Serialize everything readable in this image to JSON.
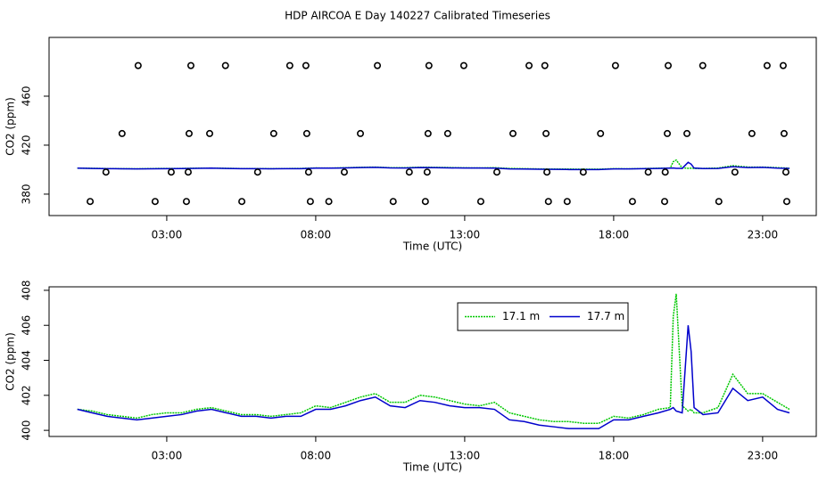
{
  "chart_data": [
    {
      "type": "scatter",
      "title": "HDP AIRCOA E  Day 140227  Calibrated Timeseries",
      "xlabel": "Time (UTC)",
      "ylabel": "CO2 (ppm)",
      "xlim": [
        -0.95,
        24.8
      ],
      "xticks": [
        {
          "value": 3,
          "label": "03:00"
        },
        {
          "value": 8,
          "label": "08:00"
        },
        {
          "value": 13,
          "label": "13:00"
        },
        {
          "value": 18,
          "label": "18:00"
        },
        {
          "value": 23,
          "label": "23:00"
        }
      ],
      "ylim": [
        362.5,
        508
      ],
      "yticks": [
        380,
        420,
        460
      ],
      "color": "#000000",
      "x": [
        2.04,
        3.81,
        4.97,
        7.13,
        7.67,
        10.07,
        11.8,
        12.97,
        15.16,
        15.69,
        18.06,
        19.83,
        20.99,
        23.15,
        23.69,
        1.5,
        3.75,
        4.44,
        6.59,
        7.7,
        9.5,
        11.77,
        12.43,
        14.62,
        15.73,
        17.56,
        19.8,
        20.46,
        22.64,
        23.72,
        0.96,
        3.15,
        3.72,
        6.05,
        7.76,
        8.96,
        11.14,
        11.74,
        14.08,
        15.76,
        16.98,
        19.16,
        19.73,
        22.07,
        23.78,
        0.43,
        2.61,
        3.66,
        5.52,
        7.82,
        8.44,
        10.6,
        11.68,
        13.54,
        15.81,
        16.44,
        18.63,
        19.71,
        21.53,
        23.81
      ],
      "values": [
        485,
        485,
        485,
        485,
        485,
        485,
        485,
        485,
        485,
        485,
        485,
        485,
        485,
        485,
        485,
        429.5,
        429.5,
        429.5,
        429.5,
        429.5,
        429.5,
        429.5,
        429.5,
        429.5,
        429.5,
        429.5,
        429.5,
        429.5,
        429.5,
        429.5,
        398,
        398,
        398,
        398,
        398,
        398,
        398,
        398,
        398,
        398,
        398,
        398,
        398,
        398,
        398,
        374,
        374,
        374,
        374,
        374,
        374,
        374,
        374,
        374,
        374,
        374,
        374,
        374,
        374,
        374
      ]
    },
    {
      "type": "line",
      "xlabel": "Time (UTC)",
      "ylabel": "CO2 (ppm)",
      "xlim": [
        -0.95,
        24.8
      ],
      "xticks": [
        {
          "value": 3,
          "label": "03:00"
        },
        {
          "value": 8,
          "label": "08:00"
        },
        {
          "value": 13,
          "label": "13:00"
        },
        {
          "value": 18,
          "label": "18:00"
        },
        {
          "value": 23,
          "label": "23:00"
        }
      ],
      "ylim": [
        399.65,
        408.2
      ],
      "yticks": [
        400,
        402,
        404,
        406,
        408
      ],
      "legend": "top-right",
      "x": [
        0,
        0.5,
        1,
        1.5,
        2,
        2.5,
        3,
        3.5,
        4,
        4.5,
        5,
        5.5,
        6,
        6.5,
        7,
        7.5,
        8,
        8.5,
        9,
        9.5,
        10,
        10.5,
        11,
        11.5,
        12,
        12.5,
        13,
        13.5,
        14,
        14.5,
        15,
        15.5,
        16,
        16.5,
        17,
        17.5,
        18,
        18.5,
        19,
        19.5,
        19.9,
        20.0,
        20.1,
        20.3,
        20.5,
        20.6,
        20.7,
        21,
        21.5,
        22,
        22.5,
        23,
        23.5,
        23.9
      ],
      "series": [
        {
          "name": "17.1 m",
          "color": "#00c800",
          "linestyle": "dotted",
          "values": [
            401.2,
            401.1,
            400.9,
            400.8,
            400.7,
            400.9,
            401.0,
            401.0,
            401.2,
            401.3,
            401.1,
            400.9,
            400.9,
            400.8,
            400.9,
            401.0,
            401.4,
            401.3,
            401.6,
            401.9,
            402.1,
            401.6,
            401.6,
            402.0,
            401.9,
            401.7,
            401.5,
            401.4,
            401.6,
            401.0,
            400.8,
            400.6,
            400.5,
            400.5,
            400.4,
            400.4,
            400.8,
            400.7,
            400.9,
            401.2,
            401.3,
            406.5,
            407.8,
            401.4,
            401.1,
            401.2,
            401.0,
            401.0,
            401.3,
            403.2,
            402.1,
            402.1,
            401.6,
            401.2
          ]
        },
        {
          "name": "17.7 m",
          "color": "#0000cc",
          "linestyle": "solid",
          "values": [
            401.2,
            401.0,
            400.8,
            400.7,
            400.6,
            400.7,
            400.8,
            400.9,
            401.1,
            401.2,
            401.0,
            400.8,
            400.8,
            400.7,
            400.8,
            400.8,
            401.2,
            401.2,
            401.4,
            401.7,
            401.9,
            401.4,
            401.3,
            401.7,
            401.6,
            401.4,
            401.3,
            401.3,
            401.2,
            400.6,
            400.5,
            400.3,
            400.2,
            400.1,
            400.1,
            400.1,
            400.6,
            400.6,
            400.8,
            401.0,
            401.2,
            401.3,
            401.1,
            401.0,
            406.0,
            404.5,
            401.3,
            400.9,
            401.0,
            402.4,
            401.7,
            401.9,
            401.2,
            401.0
          ]
        }
      ]
    }
  ]
}
